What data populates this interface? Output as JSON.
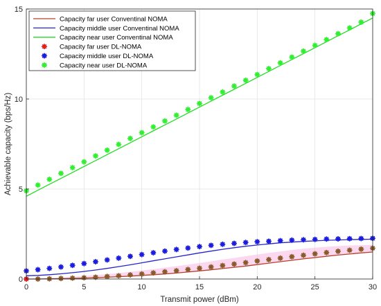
{
  "chart_data": {
    "type": "line",
    "xlabel": "Transmit power (dBm)",
    "ylabel": "Achievable capacity (bps/Hz)",
    "xlim": [
      0,
      30
    ],
    "ylim": [
      0,
      15
    ],
    "xticks": [
      0,
      5,
      10,
      15,
      20,
      25,
      30
    ],
    "yticks": [
      0,
      5,
      10,
      15
    ],
    "grid": true,
    "legend_position": "top-left",
    "x": [
      0,
      1,
      2,
      3,
      4,
      5,
      6,
      7,
      8,
      9,
      10,
      11,
      12,
      13,
      14,
      15,
      16,
      17,
      18,
      19,
      20,
      21,
      22,
      23,
      24,
      25,
      26,
      27,
      28,
      29,
      30
    ],
    "series": [
      {
        "name": "Capacity far user Conventinal NOMA",
        "style": "line",
        "color": "#b5402a",
        "values": [
          0.0,
          0.0,
          0.01,
          0.02,
          0.03,
          0.05,
          0.07,
          0.1,
          0.13,
          0.16,
          0.2,
          0.24,
          0.28,
          0.33,
          0.39,
          0.45,
          0.51,
          0.58,
          0.65,
          0.72,
          0.8,
          0.88,
          0.96,
          1.04,
          1.12,
          1.19,
          1.26,
          1.33,
          1.39,
          1.45,
          1.5
        ]
      },
      {
        "name": "Capacity middle user Conventinal NOMA",
        "style": "line",
        "color": "#2424cc",
        "values": [
          0.18,
          0.2,
          0.24,
          0.29,
          0.35,
          0.42,
          0.5,
          0.59,
          0.69,
          0.79,
          0.9,
          1.01,
          1.12,
          1.23,
          1.34,
          1.45,
          1.55,
          1.65,
          1.74,
          1.82,
          1.89,
          1.95,
          2.01,
          2.05,
          2.09,
          2.12,
          2.15,
          2.17,
          2.19,
          2.2,
          2.21
        ]
      },
      {
        "name": "Capacity near user Conventinal NOMA",
        "style": "line",
        "color": "#22dd22",
        "values": [
          4.6,
          4.93,
          5.26,
          5.59,
          5.92,
          6.25,
          6.58,
          6.91,
          7.24,
          7.57,
          7.9,
          8.23,
          8.56,
          8.89,
          9.22,
          9.55,
          9.88,
          10.21,
          10.54,
          10.87,
          11.2,
          11.53,
          11.86,
          12.19,
          12.52,
          12.85,
          13.18,
          13.51,
          13.84,
          14.17,
          14.5
        ]
      },
      {
        "name": "Capacity far user DL-NOMA",
        "style": "marker",
        "color": "#e02020",
        "values": [
          0.0,
          0.0,
          0.01,
          0.03,
          0.05,
          0.07,
          0.1,
          0.14,
          0.18,
          0.23,
          0.28,
          0.34,
          0.4,
          0.46,
          0.53,
          0.6,
          0.67,
          0.75,
          0.83,
          0.91,
          1.0,
          1.08,
          1.16,
          1.24,
          1.32,
          1.4,
          1.47,
          1.54,
          1.6,
          1.66,
          1.71
        ]
      },
      {
        "name": "Capacity middle user DL-NOMA",
        "style": "marker",
        "color": "#1c1cdd",
        "values": [
          0.45,
          0.52,
          0.59,
          0.67,
          0.76,
          0.86,
          0.96,
          1.06,
          1.16,
          1.26,
          1.36,
          1.46,
          1.55,
          1.64,
          1.72,
          1.8,
          1.87,
          1.93,
          1.98,
          2.03,
          2.07,
          2.1,
          2.13,
          2.16,
          2.18,
          2.2,
          2.22,
          2.23,
          2.24,
          2.25,
          2.26
        ]
      },
      {
        "name": "Capacity near user DL-NOMA",
        "style": "marker",
        "color": "#33ee33",
        "values": [
          4.9,
          5.22,
          5.54,
          5.87,
          6.19,
          6.51,
          6.84,
          7.16,
          7.48,
          7.81,
          8.13,
          8.45,
          8.78,
          9.1,
          9.42,
          9.75,
          10.07,
          10.39,
          10.72,
          11.04,
          11.36,
          11.69,
          12.01,
          12.33,
          12.66,
          12.98,
          13.3,
          13.63,
          13.95,
          14.27,
          14.75
        ]
      }
    ],
    "pink_band": {
      "color": "#f8b8e4",
      "lower": [
        0.0,
        0.0,
        0.01,
        0.02,
        0.03,
        0.05,
        0.07,
        0.1,
        0.13,
        0.16,
        0.2,
        0.24,
        0.28,
        0.33,
        0.39,
        0.45,
        0.51,
        0.58,
        0.65,
        0.72,
        0.8,
        0.88,
        0.96,
        1.04,
        1.12,
        1.19,
        1.26,
        1.33,
        1.39,
        1.45,
        1.5
      ],
      "upper": [
        0.0,
        0.02,
        0.05,
        0.09,
        0.13,
        0.17,
        0.22,
        0.27,
        0.33,
        0.4,
        0.47,
        0.55,
        0.63,
        0.71,
        0.8,
        0.89,
        0.98,
        1.08,
        1.17,
        1.27,
        1.36,
        1.45,
        1.53,
        1.61,
        1.68,
        1.74,
        1.79,
        1.83,
        1.86,
        1.88,
        1.9
      ]
    }
  }
}
